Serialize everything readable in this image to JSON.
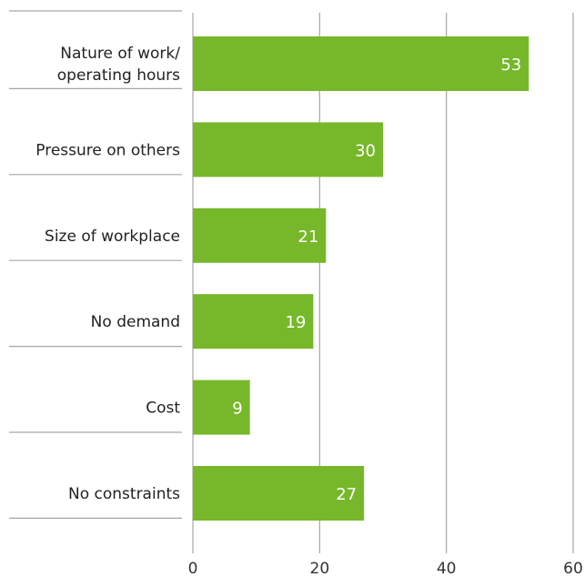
{
  "chart_data": {
    "type": "bar",
    "orientation": "horizontal",
    "categories": [
      [
        "Nature of work/",
        "operating hours"
      ],
      [
        "Pressure on others"
      ],
      [
        "Size of workplace"
      ],
      [
        "No demand"
      ],
      [
        "Cost"
      ],
      [
        "No constraints"
      ]
    ],
    "values": [
      53,
      30,
      21,
      19,
      9,
      27
    ],
    "data_labels": [
      "53",
      "30",
      "21",
      "19",
      "9",
      "27"
    ],
    "xlim": [
      0,
      60
    ],
    "xticks": [
      0,
      20,
      40,
      60
    ],
    "xtick_labels": [
      "0",
      "20",
      "40",
      "60"
    ],
    "title": "",
    "xlabel": "",
    "ylabel": "",
    "grid": "vertical",
    "bar_color": "#76b82a",
    "grid_color": "#a6a6a6",
    "separator_color": "#a6a6a6"
  }
}
